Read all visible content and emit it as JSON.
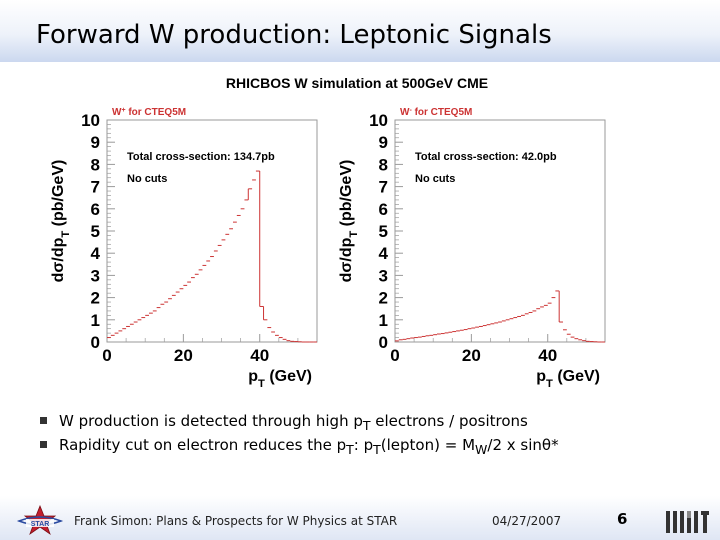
{
  "slide": {
    "title": "Forward W production: Leptonic Signals"
  },
  "figure": {
    "title": "RHICBOS W simulation at 500GeV CME"
  },
  "chart_data": [
    {
      "type": "bar",
      "panel": "W+",
      "title": "W+ for CTEQ5M",
      "annotations": [
        "Total cross-section: 134.7pb",
        "No cuts"
      ],
      "xlabel": "pT (GeV)",
      "ylabel": "dσ/dpT (pb/GeV)",
      "xlim": [
        0,
        55
      ],
      "ylim": [
        0,
        10
      ],
      "xticks": [
        "0",
        "20",
        "40"
      ],
      "yticks": [
        "0",
        "1",
        "2",
        "3",
        "4",
        "5",
        "6",
        "7",
        "8",
        "9",
        "10"
      ],
      "bin_width": 1,
      "values": [
        0.2,
        0.3,
        0.4,
        0.5,
        0.6,
        0.7,
        0.8,
        0.9,
        1.0,
        1.1,
        1.2,
        1.3,
        1.4,
        1.55,
        1.7,
        1.8,
        1.95,
        2.1,
        2.25,
        2.4,
        2.55,
        2.7,
        2.9,
        3.05,
        3.25,
        3.45,
        3.65,
        3.85,
        4.1,
        4.35,
        4.6,
        4.85,
        5.1,
        5.4,
        5.7,
        6.0,
        6.4,
        6.9,
        7.3,
        7.7,
        1.6,
        1.0,
        0.65,
        0.45,
        0.3,
        0.2,
        0.12,
        0.06,
        0.03,
        0.02,
        0.01,
        0,
        0,
        0,
        0
      ]
    },
    {
      "type": "bar",
      "panel": "W-",
      "title": "W- for CTEQ5M",
      "annotations": [
        "Total cross-section: 42.0pb",
        "No cuts"
      ],
      "xlabel": "pT (GeV)",
      "ylabel": "dσ/dpT (pb/GeV)",
      "xlim": [
        0,
        55
      ],
      "ylim": [
        0,
        10
      ],
      "xticks": [
        "0",
        "20",
        "40"
      ],
      "yticks": [
        "0",
        "1",
        "2",
        "3",
        "4",
        "5",
        "6",
        "7",
        "8",
        "9",
        "10"
      ],
      "bin_width": 1,
      "values": [
        0.05,
        0.1,
        0.12,
        0.15,
        0.18,
        0.2,
        0.22,
        0.25,
        0.28,
        0.3,
        0.33,
        0.36,
        0.38,
        0.41,
        0.44,
        0.47,
        0.5,
        0.53,
        0.56,
        0.6,
        0.63,
        0.67,
        0.7,
        0.74,
        0.78,
        0.82,
        0.86,
        0.9,
        0.95,
        1.0,
        1.05,
        1.1,
        1.15,
        1.2,
        1.27,
        1.33,
        1.4,
        1.5,
        1.58,
        1.65,
        1.75,
        2.0,
        2.3,
        0.9,
        0.55,
        0.35,
        0.22,
        0.15,
        0.1,
        0.06,
        0.03,
        0.02,
        0.01,
        0,
        0
      ]
    }
  ],
  "bullets": [
    {
      "pre": "W production is detected through high p",
      "sub": "T",
      "post": " electrons / positrons"
    },
    {
      "pre": "Rapidity cut on electron reduces the p",
      "sub1": "T",
      "mid1": ": p",
      "sub2": "T",
      "mid2": "(lepton) = M",
      "sub3": "W",
      "post": "/2 x sinθ*"
    }
  ],
  "footer": {
    "presenter": "Frank Simon: Plans & Prospects for W Physics at STAR",
    "date": "04/27/2007",
    "page": "6"
  },
  "colors": {
    "histogram": "#cc3333",
    "axis": "#000000",
    "frame": "#9a9a9a",
    "title_band": "#cbd8ef"
  },
  "icons": {
    "left_logo": "star-logo",
    "right_logo": "mit-logo"
  }
}
